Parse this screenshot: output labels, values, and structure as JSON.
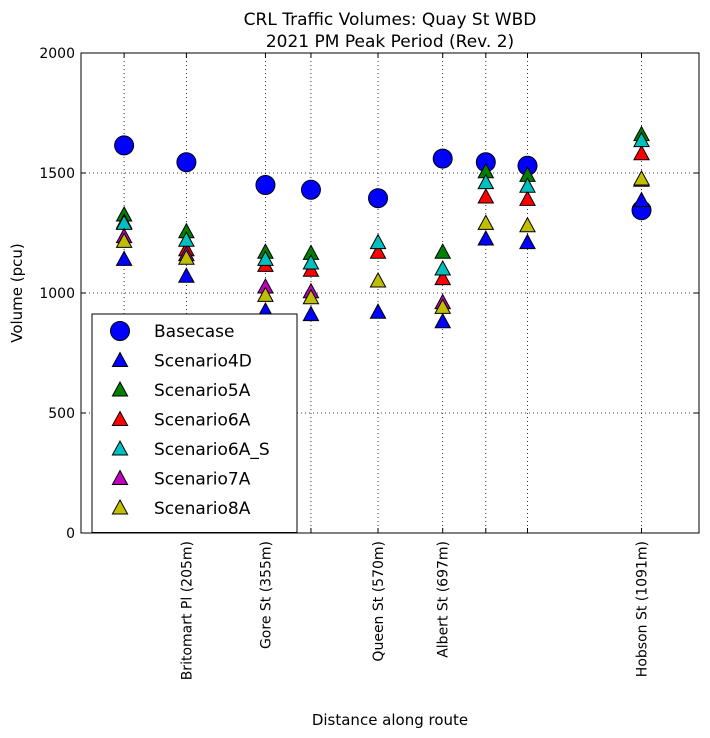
{
  "chart_data": {
    "type": "scatter",
    "title": "CRL Traffic Volumes: Quay St WBD",
    "subtitle": "2021 PM Peak Period (Rev. 2)",
    "xlabel": "Distance along route",
    "ylabel": "Volume (pcu)",
    "xlim": [
      -80,
      1210
    ],
    "ylim": [
      0,
      2000
    ],
    "y_ticks": [
      "0",
      "500",
      "1000",
      "1500",
      "2000"
    ],
    "y_tick_values": [
      0,
      500,
      1000,
      1500,
      2000
    ],
    "x_positions": [
      10,
      140,
      305,
      400,
      540,
      675,
      765,
      852,
      1090
    ],
    "x_tick_labels": [
      "",
      "Britomart Pl (205m)",
      "Gore St (355m)",
      "",
      "Queen St (570m)",
      "Albert St (697m)",
      "",
      "",
      "Hobson St (1091m)"
    ],
    "grid": true,
    "legend_position": "lower-left",
    "series": [
      {
        "name": "Basecase",
        "marker": "circle",
        "color": "#0000ff",
        "values": [
          1615,
          1545,
          1450,
          1430,
          1395,
          1560,
          1545,
          1530,
          1345
        ]
      },
      {
        "name": "Scenario4D",
        "marker": "triangle",
        "color": "#0000ff",
        "values": [
          1140,
          1070,
          925,
          910,
          920,
          880,
          1225,
          1210,
          1385
        ]
      },
      {
        "name": "Scenario5A",
        "marker": "triangle",
        "color": "#008000",
        "values": [
          1325,
          1255,
          1170,
          1165,
          null,
          1170,
          1505,
          1490,
          1660
        ]
      },
      {
        "name": "Scenario6A",
        "marker": "triangle",
        "color": "#ff0000",
        "values": [
          1295,
          1180,
          1115,
          1095,
          1170,
          1060,
          1400,
          1390,
          1580
        ]
      },
      {
        "name": "Scenario6A_S",
        "marker": "triangle",
        "color": "#00bfbf",
        "values": [
          1290,
          1220,
          1140,
          1125,
          1210,
          1100,
          1460,
          1445,
          1635
        ]
      },
      {
        "name": "Scenario7A",
        "marker": "triangle",
        "color": "#bf00bf",
        "values": [
          1235,
          1160,
          1025,
          1005,
          null,
          960,
          null,
          null,
          1470
        ]
      },
      {
        "name": "Scenario8A",
        "marker": "triangle",
        "color": "#bfbf00",
        "values": [
          1215,
          1145,
          990,
          980,
          1050,
          940,
          1290,
          1280,
          1475
        ]
      }
    ]
  }
}
